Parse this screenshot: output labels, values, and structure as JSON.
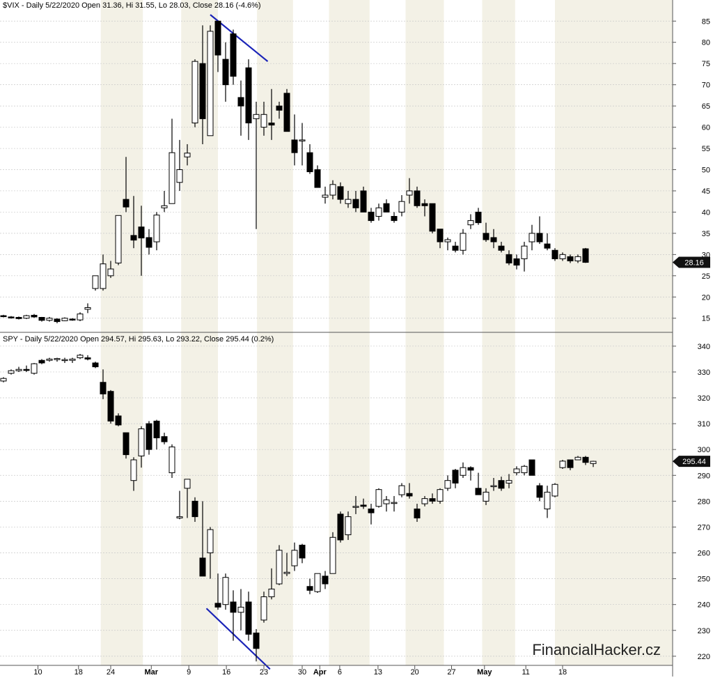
{
  "chart_data": [
    {
      "type": "candlestick",
      "title": "$VIX - Daily 5/22/2020 Open 31.36, Hi 31.55, Lo 28.03, Close 28.16 (-4.6%)",
      "last_close_label": "28.16",
      "last_close": 28.16,
      "ylim": [
        12,
        88
      ],
      "y_ticks": [
        "15",
        "20",
        "25",
        "30",
        "35",
        "40",
        "45",
        "50",
        "55",
        "60",
        "65",
        "70",
        "75",
        "80",
        "85"
      ],
      "candles": [
        [
          15.6,
          15.8,
          15.2,
          15.4
        ],
        [
          15.3,
          15.5,
          14.9,
          15.1
        ],
        [
          15.2,
          15.4,
          14.7,
          14.9
        ],
        [
          15.0,
          15.8,
          14.8,
          15.6
        ],
        [
          15.7,
          16.0,
          15.1,
          15.3
        ],
        [
          15.2,
          15.3,
          14.2,
          14.5
        ],
        [
          14.5,
          15.3,
          14.2,
          15.0
        ],
        [
          14.8,
          15.0,
          13.8,
          14.2
        ],
        [
          14.4,
          15.2,
          14.3,
          15.0
        ],
        [
          14.8,
          15.0,
          14.4,
          14.7
        ],
        [
          14.6,
          16.4,
          14.3,
          16.0
        ],
        [
          17.1,
          18.5,
          16.2,
          17.5
        ],
        [
          22.0,
          25.0,
          21.5,
          25.0
        ],
        [
          22.0,
          30.0,
          21.5,
          27.8
        ],
        [
          25.0,
          28.5,
          24.5,
          26.6
        ],
        [
          28.0,
          39.2,
          27.5,
          39.2
        ],
        [
          43.0,
          53.0,
          40.0,
          41.2
        ],
        [
          34.5,
          43.8,
          31.5,
          33.4
        ],
        [
          36.5,
          41.5,
          25.0,
          33.9
        ],
        [
          34.0,
          36.0,
          30.0,
          31.7
        ],
        [
          33.0,
          40.0,
          31.0,
          39.3
        ],
        [
          41.0,
          45.0,
          40.0,
          41.5
        ],
        [
          42.0,
          62.0,
          42.0,
          54.0
        ],
        [
          47.0,
          57.0,
          45.0,
          50.0
        ],
        [
          53.0,
          56.0,
          51.0,
          53.9
        ],
        [
          61.0,
          76.0,
          60.0,
          75.5
        ],
        [
          75.0,
          84.0,
          56.0,
          62.0
        ],
        [
          58.0,
          84.0,
          58.0,
          82.6
        ],
        [
          85.0,
          85.0,
          73.0,
          77.0
        ],
        [
          76.0,
          80.0,
          66.0,
          70.0
        ],
        [
          82.0,
          83.0,
          70.0,
          72.0
        ],
        [
          67.0,
          71.0,
          58.0,
          65.0
        ],
        [
          74.0,
          76.0,
          57.0,
          61.0
        ],
        [
          62.0,
          66.0,
          36.0,
          63.0
        ],
        [
          60.0,
          66.0,
          58.0,
          63.0
        ],
        [
          61.0,
          69.0,
          57.0,
          60.5
        ],
        [
          65.0,
          66.0,
          62.0,
          64.0
        ],
        [
          68.0,
          69.0,
          59.0,
          59.0
        ],
        [
          57.0,
          63.0,
          51.0,
          54.0
        ],
        [
          57.0,
          61.0,
          51.0,
          57.0
        ],
        [
          54.0,
          56.0,
          49.0,
          49.5
        ],
        [
          50.0,
          51.0,
          46.0,
          45.8
        ],
        [
          43.5,
          46.0,
          42.0,
          44.0
        ],
        [
          44.0,
          47.5,
          43.0,
          46.5
        ],
        [
          46.0,
          47.0,
          42.0,
          43.0
        ],
        [
          42.0,
          45.0,
          41.0,
          43.0
        ],
        [
          43.0,
          45.0,
          40.0,
          41.0
        ],
        [
          45.0,
          46.0,
          40.0,
          40.0
        ],
        [
          40.0,
          41.0,
          37.5,
          38.0
        ],
        [
          39.0,
          42.0,
          38.0,
          41.0
        ],
        [
          42.0,
          43.0,
          40.0,
          40.0
        ],
        [
          39.0,
          40.0,
          37.5,
          38.0
        ],
        [
          40.0,
          44.0,
          39.0,
          42.5
        ],
        [
          44.0,
          48.0,
          42.0,
          45.0
        ],
        [
          45.0,
          46.0,
          41.0,
          41.5
        ],
        [
          42.0,
          43.0,
          39.0,
          41.5
        ],
        [
          42.0,
          42.0,
          35.0,
          35.5
        ],
        [
          36.0,
          36.0,
          31.5,
          33.0
        ],
        [
          33.0,
          34.0,
          31.0,
          33.5
        ],
        [
          32.0,
          33.0,
          30.5,
          31.0
        ],
        [
          31.0,
          36.0,
          30.0,
          35.0
        ],
        [
          37.0,
          39.5,
          36.0,
          38.0
        ],
        [
          40.0,
          41.0,
          37.0,
          37.5
        ],
        [
          35.0,
          37.5,
          33.0,
          33.5
        ],
        [
          34.0,
          36.0,
          31.5,
          33.0
        ],
        [
          32.0,
          33.0,
          30.5,
          31.0
        ],
        [
          30.0,
          31.0,
          27.5,
          28.0
        ],
        [
          29.0,
          30.0,
          26.5,
          27.5
        ],
        [
          29.0,
          33.0,
          26.0,
          32.0
        ],
        [
          33.0,
          37.0,
          31.0,
          35.0
        ],
        [
          35.0,
          39.0,
          32.5,
          33.0
        ],
        [
          32.5,
          35.0,
          31.0,
          31.5
        ],
        [
          31.0,
          31.5,
          28.5,
          29.0
        ],
        [
          29.0,
          30.5,
          28.5,
          30.0
        ],
        [
          29.5,
          30.0,
          28.0,
          28.5
        ],
        [
          28.5,
          30.0,
          28.0,
          29.5
        ],
        [
          31.36,
          31.55,
          28.03,
          28.16
        ]
      ],
      "trendline": [
        [
          27,
          86.5
        ],
        [
          34.5,
          75.5
        ]
      ],
      "colors": {
        "up": "#ffffff",
        "down": "#000000",
        "trendline": "#1a23b8",
        "shade": "#f3f1e6"
      }
    },
    {
      "type": "candlestick",
      "title": "SPY - Daily 5/22/2020 Open 294.57, Hi 295.63, Lo 293.22, Close 295.44 (0.2%)",
      "last_close_label": "295.44",
      "last_close": 295.44,
      "ylim": [
        217,
        344
      ],
      "y_ticks": [
        "220",
        "230",
        "240",
        "250",
        "260",
        "270",
        "280",
        "290",
        "300",
        "310",
        "320",
        "330",
        "340"
      ],
      "candles": [
        [
          326.5,
          328.0,
          326.0,
          327.5
        ],
        [
          329.5,
          331.0,
          329.0,
          330.5
        ],
        [
          330.5,
          332.0,
          330.0,
          331.0
        ],
        [
          331.0,
          332.5,
          330.0,
          330.8
        ],
        [
          329.5,
          333.5,
          329.0,
          333.2
        ],
        [
          334.5,
          335.0,
          333.0,
          333.5
        ],
        [
          334.5,
          335.5,
          334.0,
          335.0
        ],
        [
          334.8,
          335.5,
          334.0,
          335.2
        ],
        [
          334.5,
          335.5,
          333.5,
          334.8
        ],
        [
          334.5,
          335.5,
          333.5,
          335.0
        ],
        [
          335.5,
          337.0,
          335.0,
          336.5
        ],
        [
          335.5,
          336.5,
          334.5,
          335.0
        ],
        [
          333.5,
          334.0,
          331.5,
          332.0
        ],
        [
          326.0,
          331.0,
          319.5,
          321.5
        ],
        [
          322.5,
          323.0,
          310.0,
          311.0
        ],
        [
          313.0,
          314.0,
          309.0,
          309.5
        ],
        [
          306.5,
          306.5,
          296.5,
          298.0
        ],
        [
          288.0,
          297.0,
          284.0,
          296.0
        ],
        [
          297.5,
          309.0,
          293.0,
          308.0
        ],
        [
          310.0,
          311.0,
          298.0,
          300.0
        ],
        [
          311.0,
          311.5,
          300.0,
          304.5
        ],
        [
          305.0,
          306.5,
          302.0,
          303.0
        ],
        [
          291.0,
          302.0,
          289.0,
          301.0
        ],
        [
          273.5,
          284.0,
          273.0,
          274.0
        ],
        [
          285.0,
          288.5,
          273.5,
          288.5
        ],
        [
          280.0,
          281.5,
          272.0,
          274.0
        ],
        [
          258.0,
          280.0,
          251.0,
          251.0
        ],
        [
          260.0,
          270.0,
          250.0,
          269.0
        ],
        [
          240.5,
          252.0,
          238.0,
          239.0
        ],
        [
          240.0,
          252.0,
          238.0,
          250.5
        ],
        [
          241.0,
          245.5,
          226.0,
          237.0
        ],
        [
          237.0,
          246.0,
          230.0,
          239.0
        ],
        [
          241.0,
          245.0,
          226.0,
          228.5
        ],
        [
          229.0,
          230.5,
          218.0,
          223.0
        ],
        [
          234.0,
          245.0,
          233.0,
          243.0
        ],
        [
          243.0,
          254.0,
          242.0,
          246.0
        ],
        [
          248.0,
          263.0,
          247.5,
          261.0
        ],
        [
          252.0,
          260.0,
          251.0,
          252.5
        ],
        [
          255.0,
          264.0,
          253.0,
          261.0
        ],
        [
          263.0,
          263.5,
          256.0,
          258.0
        ],
        [
          247.0,
          250.0,
          244.0,
          245.5
        ],
        [
          245.0,
          252.0,
          244.5,
          252.0
        ],
        [
          251.0,
          253.0,
          246.0,
          248.0
        ],
        [
          252.0,
          268.0,
          252.0,
          266.0
        ],
        [
          275.0,
          276.0,
          264.0,
          265.0
        ],
        [
          267.0,
          276.0,
          265.0,
          274.0
        ],
        [
          278.0,
          282.0,
          275.0,
          278.0
        ],
        [
          278.5,
          281.0,
          277.0,
          278.0
        ],
        [
          277.0,
          279.0,
          271.0,
          275.5
        ],
        [
          278.0,
          285.0,
          277.5,
          284.5
        ],
        [
          279.0,
          282.0,
          276.0,
          280.5
        ],
        [
          279.5,
          282.0,
          276.0,
          279.5
        ],
        [
          282.5,
          287.0,
          281.5,
          286.0
        ],
        [
          283.0,
          287.0,
          281.0,
          282.0
        ],
        [
          277.0,
          279.0,
          272.0,
          273.5
        ],
        [
          279.0,
          282.0,
          278.0,
          281.0
        ],
        [
          281.0,
          283.0,
          279.0,
          280.0
        ],
        [
          280.0,
          285.0,
          279.0,
          284.5
        ],
        [
          285.0,
          290.0,
          284.0,
          288.0
        ],
        [
          292.0,
          292.5,
          285.0,
          287.0
        ],
        [
          290.0,
          295.0,
          289.0,
          293.0
        ],
        [
          293.0,
          293.5,
          288.0,
          292.0
        ],
        [
          285.0,
          291.0,
          283.0,
          282.5
        ],
        [
          280.0,
          285.0,
          278.5,
          283.5
        ],
        [
          286.0,
          289.0,
          284.0,
          286.0
        ],
        [
          288.0,
          289.5,
          284.0,
          285.0
        ],
        [
          287.0,
          290.5,
          285.0,
          288.0
        ],
        [
          291.0,
          293.5,
          290.0,
          292.5
        ],
        [
          291.0,
          294.0,
          290.0,
          293.5
        ],
        [
          296.0,
          296.0,
          290.0,
          290.0
        ],
        [
          286.0,
          287.0,
          280.0,
          281.5
        ],
        [
          277.0,
          286.0,
          273.5,
          283.5
        ],
        [
          282.0,
          287.0,
          281.5,
          286.5
        ],
        [
          293.0,
          296.0,
          292.5,
          295.5
        ],
        [
          296.0,
          296.0,
          292.0,
          293.0
        ],
        [
          296.0,
          297.5,
          296.0,
          297.0
        ],
        [
          297.0,
          297.5,
          294.0,
          295.0
        ],
        [
          294.57,
          295.63,
          293.22,
          295.44
        ]
      ],
      "trendline": [
        [
          26.5,
          238.5
        ],
        [
          34.8,
          215.0
        ]
      ],
      "colors": {
        "up": "#ffffff",
        "down": "#000000",
        "trendline": "#1a23b8",
        "shade": "#f3f1e6"
      }
    }
  ],
  "x_axis": {
    "labels": [
      {
        "text": "10",
        "index": 4.5
      },
      {
        "text": "18",
        "index": 9.8
      },
      {
        "text": "24",
        "index": 14.0
      },
      {
        "text": "Mar",
        "index": 19.3,
        "bold": true
      },
      {
        "text": "9",
        "index": 24.2
      },
      {
        "text": "16",
        "index": 29.1
      },
      {
        "text": "23",
        "index": 34.0
      },
      {
        "text": "30",
        "index": 39.0
      },
      {
        "text": "Apr",
        "index": 41.3,
        "bold": true
      },
      {
        "text": "6",
        "index": 43.9
      },
      {
        "text": "13",
        "index": 48.9
      },
      {
        "text": "20",
        "index": 53.7
      },
      {
        "text": "27",
        "index": 58.5
      },
      {
        "text": "May",
        "index": 62.8,
        "bold": true
      },
      {
        "text": "11",
        "index": 68.2
      },
      {
        "text": "18",
        "index": 73.0
      }
    ],
    "shade_bands": [
      [
        12.7,
        18.2
      ],
      [
        23.2,
        28.0
      ],
      [
        33.1,
        37.8
      ],
      [
        42.5,
        47.8
      ],
      [
        52.5,
        57.5
      ],
      [
        62.5,
        66.8
      ],
      [
        72.0,
        77.5
      ]
    ]
  },
  "watermark": "FinancialHacker.cz"
}
